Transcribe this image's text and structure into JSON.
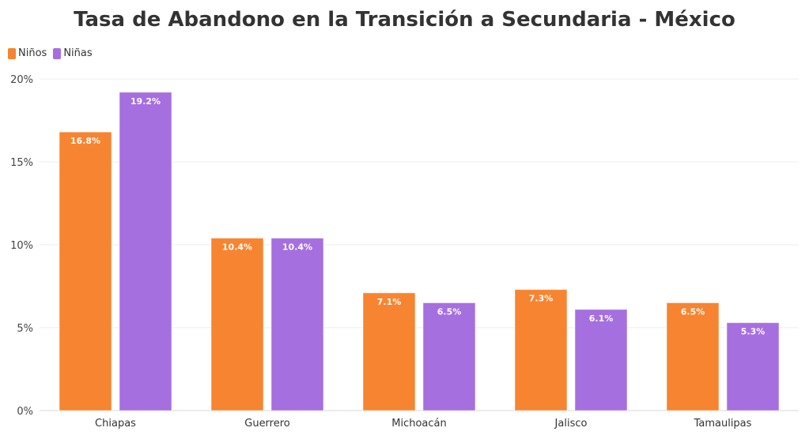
{
  "chart_data": {
    "type": "bar",
    "title": "Tasa de Abandono en la Transición a Secundaria - México",
    "xlabel": "",
    "ylabel": "",
    "categories": [
      "Chiapas",
      "Guerrero",
      "Michoacán",
      "Jalisco",
      "Tamaulipas"
    ],
    "series": [
      {
        "name": "Niños",
        "color": "#f78430",
        "values": [
          16.8,
          10.4,
          7.1,
          7.3,
          6.5
        ],
        "labels": [
          "16.8%",
          "10.4%",
          "7.1%",
          "7.3%",
          "6.5%"
        ]
      },
      {
        "name": "Niñas",
        "color": "#a66fe0",
        "values": [
          19.2,
          10.4,
          6.5,
          6.1,
          5.3
        ],
        "labels": [
          "19.2%",
          "10.4%",
          "6.5%",
          "6.1%",
          "5.3%"
        ]
      }
    ],
    "ylim": [
      0,
      20
    ],
    "yticks": [
      0,
      5,
      10,
      15,
      20
    ],
    "ytick_labels": [
      "0%",
      "5%",
      "10%",
      "15%",
      "20%"
    ],
    "grid": true,
    "legend": "top-left"
  }
}
